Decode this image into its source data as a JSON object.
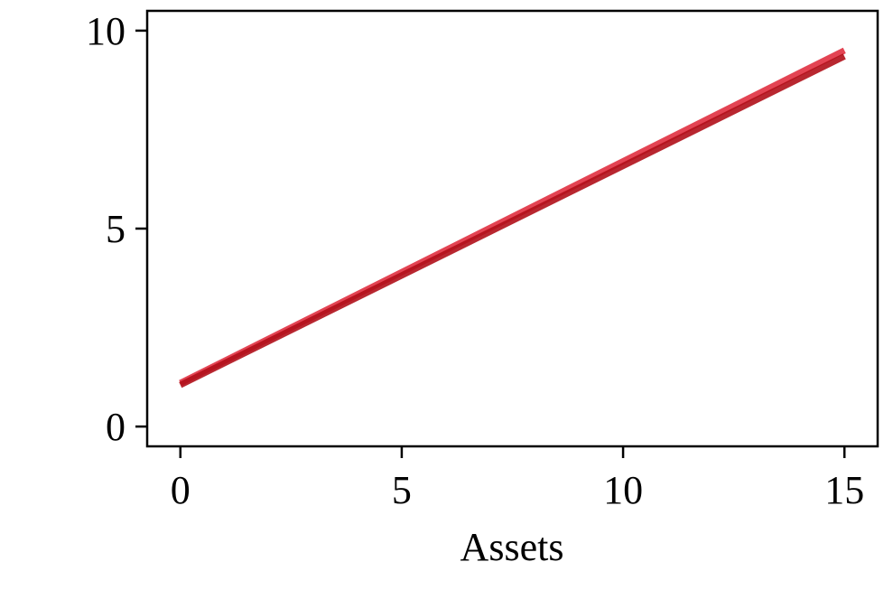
{
  "chart_data": {
    "type": "line",
    "title": "",
    "xlabel": "Assets",
    "ylabel": "",
    "xlim": [
      -0.75,
      15.75
    ],
    "ylim": [
      -0.5,
      10.5
    ],
    "x_ticks": [
      0,
      5,
      10,
      15
    ],
    "y_ticks": [
      0,
      5,
      10
    ],
    "x_tick_labels": [
      "0",
      "5",
      "10",
      "15"
    ],
    "y_tick_labels": [
      "0",
      "5",
      "10"
    ],
    "grid": false,
    "legend": "none",
    "series": [
      {
        "x": [
          0,
          15
        ],
        "values": [
          1.1,
          9.5
        ],
        "color": "#e03040"
      },
      {
        "x": [
          0,
          15
        ],
        "values": [
          1.05,
          9.35
        ],
        "color": "#b0101a"
      }
    ]
  }
}
